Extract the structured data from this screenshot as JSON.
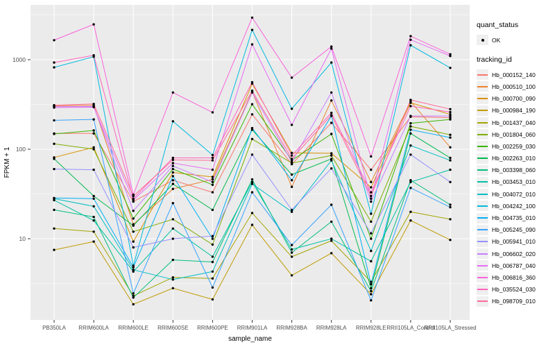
{
  "chart_data": {
    "type": "line",
    "title": "",
    "xlabel": "sample_name",
    "ylabel": "FPKM + 1",
    "y_scale": "log10",
    "y_ticks": [
      10,
      100,
      1000
    ],
    "y_minor_ticks": [
      3.162,
      31.62,
      316.2,
      3162
    ],
    "ylim": [
      1.6,
      3800
    ],
    "grid": true,
    "panel_bg": "#EBEBEB",
    "grid_color": "#FFFFFF",
    "point_color": "#000000",
    "legend_position": "right",
    "legend": {
      "quant_status_title": "quant_status",
      "quant_status_items": [
        "OK"
      ],
      "tracking_id_title": "tracking_id"
    },
    "categories": [
      "PB350LA",
      "RRIM600LA",
      "RRIM600LE",
      "RRIM600SE",
      "RRIM600PE",
      "RRIM901LA",
      "RRIM928BA",
      "RRIM928LA",
      "RRIM928LE",
      "RRII105LA_Control",
      "RRII105LA_Stressed"
    ],
    "series": [
      {
        "name": "Hb_000152_140",
        "color": "#F8766D",
        "values": [
          150,
          150,
          26,
          45,
          33,
          245,
          68,
          197,
          59,
          230,
          225
        ]
      },
      {
        "name": "Hb_000510_100",
        "color": "#EA8331",
        "values": [
          305,
          310,
          14.5,
          36,
          46,
          440,
          38,
          350,
          43,
          340,
          105
        ]
      },
      {
        "name": "Hb_000700_090",
        "color": "#D89000",
        "values": [
          81,
          105,
          9.3,
          55,
          49,
          540,
          91,
          90,
          37.5,
          330,
          245
        ]
      },
      {
        "name": "Hb_000984_190",
        "color": "#C09B00",
        "values": [
          7.5,
          9.3,
          1.85,
          2.8,
          2.1,
          14.3,
          3.9,
          6.9,
          2.4,
          16,
          9.7
        ]
      },
      {
        "name": "Hb_001437_040",
        "color": "#A3A500",
        "values": [
          13,
          12,
          2.3,
          3.7,
          3.6,
          19.4,
          6.3,
          9.5,
          3.3,
          20,
          16.5
        ]
      },
      {
        "name": "Hb_001804_060",
        "color": "#7CAE00",
        "values": [
          115,
          100,
          12,
          16.5,
          8.6,
          130,
          70,
          85,
          15.5,
          180,
          145
        ]
      },
      {
        "name": "Hb_002259_030",
        "color": "#39B600",
        "values": [
          148,
          162,
          16.8,
          60,
          40,
          318,
          75,
          148,
          10,
          195,
          215
        ]
      },
      {
        "name": "Hb_002263_010",
        "color": "#00BB4E",
        "values": [
          78,
          30,
          14,
          41,
          21,
          165,
          52,
          78,
          2.8,
          150,
          80
        ]
      },
      {
        "name": "Hb_003398_060",
        "color": "#00BF7D",
        "values": [
          21,
          17.5,
          2.2,
          5.8,
          5.5,
          46,
          7,
          15.5,
          2.6,
          45,
          24
        ]
      },
      {
        "name": "Hb_003453_010",
        "color": "#00C1A3",
        "values": [
          27,
          16,
          4.3,
          13,
          6.3,
          43,
          7.6,
          10,
          5.6,
          43,
          59
        ]
      },
      {
        "name": "Hb_004072_010",
        "color": "#00BFC4",
        "values": [
          28,
          23,
          4.5,
          3.5,
          4.3,
          41,
          20,
          75,
          7.3,
          110,
          75
        ]
      },
      {
        "name": "Hb_004242_100",
        "color": "#00BAE0",
        "values": [
          820,
          1080,
          5,
          205,
          86,
          2150,
          283,
          930,
          19,
          1450,
          810
        ]
      },
      {
        "name": "Hb_004735_010",
        "color": "#00B0F6",
        "values": [
          28.5,
          28,
          4.8,
          50,
          10,
          172,
          45,
          235,
          3.1,
          165,
          135
        ]
      },
      {
        "name": "Hb_005245_090",
        "color": "#35A2FF",
        "values": [
          210,
          215,
          2.45,
          25,
          2.85,
          33,
          8.5,
          24,
          2.05,
          37,
          22.5
        ]
      },
      {
        "name": "Hb_005941_010",
        "color": "#9590FF",
        "values": [
          60,
          59,
          8,
          10,
          10.7,
          87,
          21,
          61,
          11.5,
          87,
          43
        ]
      },
      {
        "name": "Hb_006602_020",
        "color": "#C77CFF",
        "values": [
          298,
          300,
          20.5,
          65,
          43,
          430,
          72,
          430,
          26,
          235,
          235
        ]
      },
      {
        "name": "Hb_006787_040",
        "color": "#E76BF3",
        "values": [
          292,
          295,
          27,
          70,
          59,
          1480,
          187,
          1330,
          28,
          1670,
          1100
        ]
      },
      {
        "name": "Hb_006816_360",
        "color": "#FA62DB",
        "values": [
          1650,
          2480,
          31,
          430,
          258,
          2950,
          630,
          1400,
          83,
          1830,
          1150
        ]
      },
      {
        "name": "Hb_035524_030",
        "color": "#FF62BC",
        "values": [
          930,
          1120,
          28,
          80,
          80,
          560,
          85,
          255,
          33,
          303,
          260
        ]
      },
      {
        "name": "Hb_098709_010",
        "color": "#FF6A98",
        "values": [
          310,
          320,
          30,
          76,
          75,
          450,
          78,
          240,
          30,
          355,
          280
        ]
      }
    ]
  }
}
